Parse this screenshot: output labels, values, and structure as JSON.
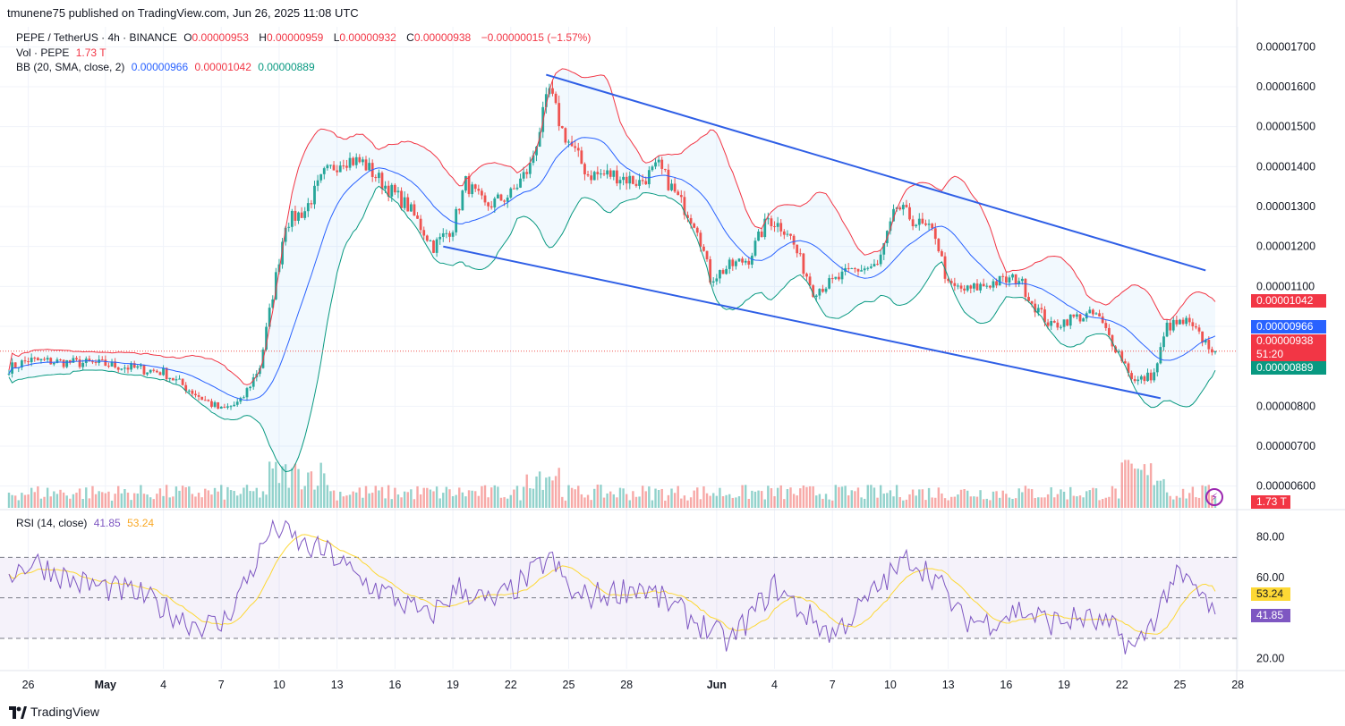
{
  "header": {
    "publisher": "tmunene75 published on TradingView.com, Jun 26, 2025 11:08 UTC"
  },
  "legend": {
    "symbol": "PEPE / TetherUS · 4h · BINANCE",
    "o_label": "O",
    "o_value": "0.00000953",
    "h_label": "H",
    "h_value": "0.00000959",
    "l_label": "L",
    "l_value": "0.00000932",
    "c_label": "C",
    "c_value": "0.00000938",
    "change": "−0.00000015 (−1.57%)",
    "vol_label": "Vol · PEPE",
    "vol_value": "1.73 T",
    "bb_label": "BB (20, SMA, close, 2)",
    "bb_basis": "0.00000966",
    "bb_upper": "0.00001042",
    "bb_lower": "0.00000889",
    "rsi_label": "RSI (14, close)",
    "rsi_value": "41.85",
    "rsi_ma": "53.24"
  },
  "price_tags": {
    "upper": "0.00001042",
    "basis": "0.00000966",
    "last": "0.00000938",
    "countdown": "51:20",
    "lower": "0.00000889",
    "volume": "1.73 T",
    "rsi_ma": "53.24",
    "rsi": "41.85"
  },
  "branding": "TradingView",
  "colors": {
    "up": "#26a69a",
    "down": "#ef5350",
    "basis": "#2962ff",
    "upper": "#f23645",
    "lower": "#089981",
    "channel": "#2f5fe6",
    "rsi": "#7e57c2",
    "rsi_ma": "#fdd835"
  },
  "chart_data": [
    {
      "type": "candlestick",
      "title": "PEPE / TetherUS · 4h · BINANCE",
      "y_ticks": [
        "0.00000600",
        "0.00000700",
        "0.00000800",
        "0.00000900",
        "0.00001000",
        "0.00001100",
        "0.00001200",
        "0.00001300",
        "0.00001400",
        "0.00001500",
        "0.00001600",
        "0.00001700"
      ],
      "ylim": [
        5.5e-06,
        1.75e-05
      ],
      "x_ticks": [
        "26",
        "May",
        "4",
        "7",
        "10",
        "13",
        "16",
        "19",
        "22",
        "25",
        "28",
        "Jun",
        "4",
        "7",
        "10",
        "13",
        "16",
        "19",
        "22",
        "25",
        "28"
      ],
      "x_tick_bars": [
        6,
        30,
        48,
        66,
        84,
        102,
        120,
        138,
        156,
        174,
        192,
        220,
        238,
        256,
        274,
        292,
        310,
        328,
        346,
        364,
        382
      ],
      "bar_count": 376,
      "price_anchors": [
        [
          0,
          8.95e-06
        ],
        [
          6,
          9.15e-06
        ],
        [
          30,
          9.05e-06
        ],
        [
          48,
          8.85e-06
        ],
        [
          60,
          8.2e-06
        ],
        [
          66,
          7.9e-06
        ],
        [
          72,
          8.1e-06
        ],
        [
          78,
          9e-06
        ],
        [
          82,
          1.08e-05
        ],
        [
          86,
          1.26e-05
        ],
        [
          92,
          1.29e-05
        ],
        [
          98,
          1.38e-05
        ],
        [
          104,
          1.42e-05
        ],
        [
          110,
          1.41e-05
        ],
        [
          116,
          1.36e-05
        ],
        [
          124,
          1.3e-05
        ],
        [
          132,
          1.2e-05
        ],
        [
          138,
          1.25e-05
        ],
        [
          142,
          1.36e-05
        ],
        [
          148,
          1.3e-05
        ],
        [
          156,
          1.33e-05
        ],
        [
          162,
          1.4e-05
        ],
        [
          168,
          1.59e-05
        ],
        [
          172,
          1.49e-05
        ],
        [
          180,
          1.38e-05
        ],
        [
          188,
          1.38e-05
        ],
        [
          196,
          1.36e-05
        ],
        [
          202,
          1.4e-05
        ],
        [
          208,
          1.32e-05
        ],
        [
          214,
          1.25e-05
        ],
        [
          218,
          1.12e-05
        ],
        [
          224,
          1.15e-05
        ],
        [
          230,
          1.17e-05
        ],
        [
          236,
          1.27e-05
        ],
        [
          242,
          1.24e-05
        ],
        [
          250,
          1.09e-05
        ],
        [
          256,
          1.11e-05
        ],
        [
          262,
          1.14e-05
        ],
        [
          270,
          1.15e-05
        ],
        [
          276,
          1.3e-05
        ],
        [
          282,
          1.26e-05
        ],
        [
          288,
          1.23e-05
        ],
        [
          292,
          1.1e-05
        ],
        [
          298,
          1.09e-05
        ],
        [
          306,
          1.11e-05
        ],
        [
          314,
          1.12e-05
        ],
        [
          318,
          1.06e-05
        ],
        [
          324,
          1e-05
        ],
        [
          330,
          1.02e-05
        ],
        [
          338,
          1.03e-05
        ],
        [
          346,
          9.2e-06
        ],
        [
          350,
          8.6e-06
        ],
        [
          356,
          8.8e-06
        ],
        [
          360,
          1e-05
        ],
        [
          366,
          1.01e-05
        ],
        [
          372,
          9.6e-06
        ],
        [
          375,
          9.38e-06
        ]
      ],
      "last_close": 9.38e-06,
      "channel": {
        "upper_line": [
          [
            167,
            1.63e-05
          ],
          [
            372,
            1.14e-05
          ]
        ],
        "lower_line": [
          [
            135,
            1.2e-05
          ],
          [
            358,
            8.2e-06
          ]
        ]
      }
    },
    {
      "type": "line",
      "title": "RSI (14, close)",
      "y_ticks": [
        "20.00",
        "60.00",
        "80.00"
      ],
      "ylim": [
        15,
        90
      ],
      "bands": [
        30,
        50,
        70
      ],
      "rsi_anchors": [
        [
          0,
          62
        ],
        [
          8,
          68
        ],
        [
          20,
          58
        ],
        [
          40,
          52
        ],
        [
          56,
          38
        ],
        [
          66,
          36
        ],
        [
          76,
          65
        ],
        [
          82,
          86
        ],
        [
          86,
          82
        ],
        [
          92,
          75
        ],
        [
          100,
          72
        ],
        [
          108,
          60
        ],
        [
          120,
          50
        ],
        [
          130,
          40
        ],
        [
          140,
          55
        ],
        [
          150,
          47
        ],
        [
          160,
          58
        ],
        [
          168,
          70
        ],
        [
          176,
          50
        ],
        [
          186,
          52
        ],
        [
          196,
          56
        ],
        [
          206,
          46
        ],
        [
          216,
          36
        ],
        [
          224,
          28
        ],
        [
          232,
          44
        ],
        [
          238,
          56
        ],
        [
          246,
          44
        ],
        [
          256,
          32
        ],
        [
          264,
          44
        ],
        [
          272,
          58
        ],
        [
          280,
          70
        ],
        [
          288,
          60
        ],
        [
          296,
          40
        ],
        [
          304,
          38
        ],
        [
          314,
          44
        ],
        [
          324,
          38
        ],
        [
          334,
          40
        ],
        [
          344,
          34
        ],
        [
          350,
          24
        ],
        [
          356,
          40
        ],
        [
          362,
          60
        ],
        [
          368,
          56
        ],
        [
          375,
          41.85
        ]
      ],
      "rsi_last": 41.85,
      "ma_last": 53.24
    }
  ]
}
